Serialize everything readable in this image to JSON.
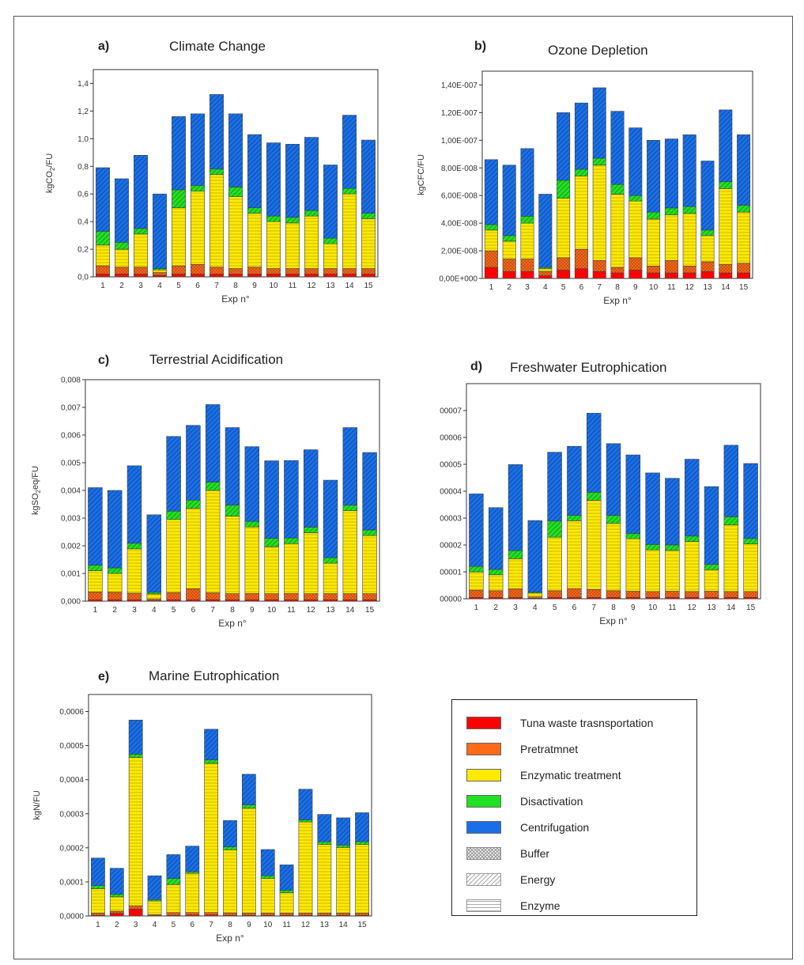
{
  "chart_data": [
    {
      "type": "bar",
      "panel": "a)",
      "title": "Climate Change",
      "ylabel": "kgCO2/FU",
      "ylabel_main": "kgCO",
      "ylabel_sub": "2",
      "ylabel_tail": "/FU",
      "xlabel": "Exp n°",
      "categories": [
        "1",
        "2",
        "3",
        "4",
        "5",
        "6",
        "7",
        "8",
        "9",
        "10",
        "11",
        "12",
        "13",
        "14",
        "15"
      ],
      "ylim": [
        0,
        1.5
      ],
      "yticks": [
        "0,0",
        "0,2",
        "0,4",
        "0,6",
        "0,8",
        "1,0",
        "1,2",
        "1,4"
      ],
      "stacked": true,
      "series": [
        {
          "name": "Tuna waste trasnsportation",
          "values": [
            0.02,
            0.02,
            0.02,
            0.01,
            0.02,
            0.02,
            0.02,
            0.02,
            0.02,
            0.02,
            0.02,
            0.02,
            0.02,
            0.02,
            0.02
          ]
        },
        {
          "name": "Pretratmnet",
          "values": [
            0.06,
            0.05,
            0.05,
            0.02,
            0.06,
            0.07,
            0.05,
            0.04,
            0.05,
            0.04,
            0.04,
            0.04,
            0.04,
            0.04,
            0.04
          ]
        },
        {
          "name": "Enzymatic treatment",
          "values": [
            0.15,
            0.13,
            0.24,
            0.02,
            0.42,
            0.53,
            0.67,
            0.52,
            0.39,
            0.34,
            0.33,
            0.38,
            0.18,
            0.54,
            0.36
          ]
        },
        {
          "name": "Disactivation",
          "values": [
            0.1,
            0.05,
            0.04,
            0.01,
            0.13,
            0.04,
            0.04,
            0.07,
            0.04,
            0.04,
            0.04,
            0.04,
            0.04,
            0.04,
            0.04
          ]
        },
        {
          "name": "Centrifugation",
          "values": [
            0.46,
            0.46,
            0.53,
            0.54,
            0.53,
            0.52,
            0.54,
            0.53,
            0.53,
            0.53,
            0.53,
            0.53,
            0.53,
            0.53,
            0.53
          ]
        }
      ]
    },
    {
      "type": "bar",
      "panel": "b)",
      "title": "Ozone Depletion",
      "ylabel": "kgCFC/FU",
      "xlabel": "Exp n°",
      "categories": [
        "1",
        "2",
        "3",
        "4",
        "5",
        "6",
        "7",
        "8",
        "9",
        "10",
        "11",
        "12",
        "13",
        "14",
        "15"
      ],
      "ylim": [
        0,
        1.5e-07
      ],
      "yticks": [
        "0,00E+000",
        "2,00E-008",
        "4,00E-008",
        "6,00E-008",
        "8,00E-008",
        "1,00E-007",
        "1,20E-007",
        "1,40E-007"
      ],
      "stacked": true,
      "series": [
        {
          "name": "Tuna waste trasnsportation",
          "values": [
            8e-09,
            5e-09,
            5e-09,
            2e-09,
            6e-09,
            7e-09,
            5e-09,
            4e-09,
            6e-09,
            4e-09,
            4e-09,
            4e-09,
            5e-09,
            4e-09,
            4e-09
          ]
        },
        {
          "name": "Pretratmnet",
          "values": [
            1.2e-08,
            9e-09,
            9e-09,
            3e-09,
            9e-09,
            1.4e-08,
            8e-09,
            4e-09,
            9e-09,
            5e-09,
            9e-09,
            5e-09,
            7e-09,
            6e-09,
            7e-09
          ]
        },
        {
          "name": "Enzymatic treatment",
          "values": [
            1.5e-08,
            1.3e-08,
            2.6e-08,
            2e-09,
            4.3e-08,
            5.3e-08,
            6.9e-08,
            5.3e-08,
            4.1e-08,
            3.4e-08,
            3.3e-08,
            3.8e-08,
            1.9e-08,
            5.5e-08,
            3.7e-08
          ]
        },
        {
          "name": "Disactivation",
          "values": [
            4e-09,
            4e-09,
            5e-09,
            1e-09,
            1.3e-08,
            5e-09,
            5e-09,
            7e-09,
            4e-09,
            5e-09,
            5e-09,
            5e-09,
            4e-09,
            5e-09,
            5e-09
          ]
        },
        {
          "name": "Centrifugation",
          "values": [
            4.7e-08,
            5.1e-08,
            4.9e-08,
            5.3e-08,
            4.9e-08,
            4.8e-08,
            5.1e-08,
            5.3e-08,
            4.9e-08,
            5.2e-08,
            5e-08,
            5.2e-08,
            5e-08,
            5.2e-08,
            5.1e-08
          ]
        }
      ]
    },
    {
      "type": "bar",
      "panel": "c)",
      "title": "Terrestrial  Acidification",
      "ylabel": "kgSO2eq/FU",
      "ylabel_main": "kgSO",
      "ylabel_sub": "2",
      "ylabel_tail": "eq/FU",
      "xlabel": "Exp n°",
      "categories": [
        "1",
        "2",
        "3",
        "4",
        "5",
        "6",
        "7",
        "8",
        "9",
        "10",
        "11",
        "12",
        "13",
        "14",
        "15"
      ],
      "ylim": [
        0,
        0.008
      ],
      "yticks": [
        "0,000",
        "0,001",
        "0,002",
        "0,003",
        "0,004",
        "0,005",
        "0,006",
        "0,007",
        "0,008"
      ],
      "stacked": true,
      "series": [
        {
          "name": "Tuna waste trasnsportation",
          "values": [
            5e-05,
            5e-05,
            5e-05,
            2e-05,
            5e-05,
            5e-05,
            5e-05,
            5e-05,
            5e-05,
            5e-05,
            5e-05,
            5e-05,
            5e-05,
            5e-05,
            5e-05
          ]
        },
        {
          "name": "Pretratmnet",
          "values": [
            0.00028,
            0.00027,
            0.00024,
            6e-05,
            0.00026,
            0.0004,
            0.00025,
            0.00022,
            0.00023,
            0.00022,
            0.00023,
            0.00022,
            0.00022,
            0.00022,
            0.00022
          ]
        },
        {
          "name": "Enzymatic treatment",
          "values": [
            0.00077,
            0.00068,
            0.0016,
            0.00018,
            0.00264,
            0.0029,
            0.0037,
            0.0028,
            0.0024,
            0.0017,
            0.0018,
            0.0022,
            0.0011,
            0.003,
            0.0021
          ]
        },
        {
          "name": "Disactivation",
          "values": [
            0.0002,
            0.0002,
            0.0002,
            6e-05,
            0.0003,
            0.0003,
            0.0003,
            0.0004,
            0.0002,
            0.0003,
            0.0002,
            0.0002,
            0.0002,
            0.0002,
            0.0002
          ]
        },
        {
          "name": "Centrifugation",
          "values": [
            0.0028,
            0.0028,
            0.0028,
            0.0028,
            0.0027,
            0.0027,
            0.0028,
            0.0028,
            0.0027,
            0.0028,
            0.0028,
            0.0028,
            0.0028,
            0.0028,
            0.0028
          ]
        }
      ]
    },
    {
      "type": "bar",
      "panel": "d)",
      "title": "Freshwater Eutrophication",
      "ylabel": "",
      "xlabel": "Exp n°",
      "categories": [
        "1",
        "2",
        "3",
        "4",
        "5",
        "6",
        "7",
        "8",
        "9",
        "10",
        "11",
        "12",
        "13",
        "14",
        "15"
      ],
      "ylim": [
        0,
        8e-05
      ],
      "yticks": [
        "00000",
        "00001",
        "00002",
        "00003",
        "00004",
        "00005",
        "00006",
        "00007"
      ],
      "stacked": true,
      "series": [
        {
          "name": "Tuna waste trasnsportation",
          "values": [
            5e-07,
            5e-07,
            5e-07,
            2e-07,
            5e-07,
            5e-07,
            5e-07,
            5e-07,
            5e-07,
            5e-07,
            5e-07,
            5e-07,
            5e-07,
            5e-07,
            5e-07
          ]
        },
        {
          "name": "Pretratmnet",
          "values": [
            2.7e-06,
            2.5e-06,
            3.2e-06,
            5e-07,
            2.5e-06,
            3.3e-06,
            2.9e-06,
            2.5e-06,
            2.3e-06,
            2.2e-06,
            2.3e-06,
            2.2e-06,
            2.3e-06,
            2.2e-06,
            2.2e-06
          ]
        },
        {
          "name": "Enzymatic treatment",
          "values": [
            6.8e-06,
            5.9e-06,
            1.12e-05,
            1.4e-06,
            1.99e-05,
            2.52e-05,
            3.32e-05,
            2.5e-05,
            1.95e-05,
            1.55e-05,
            1.52e-05,
            1.86e-05,
            8e-06,
            2.48e-05,
            1.77e-05
          ]
        },
        {
          "name": "Disactivation",
          "values": [
            2e-06,
            2e-06,
            3e-06,
            4e-07,
            6e-06,
            2e-06,
            3e-06,
            3e-06,
            2e-06,
            2e-06,
            2e-06,
            2e-06,
            2e-06,
            3e-06,
            2e-06
          ]
        },
        {
          "name": "Centrifugation",
          "values": [
            2.7e-05,
            2.3e-05,
            3.2e-05,
            2.66e-05,
            2.56e-05,
            2.57e-05,
            2.94e-05,
            2.67e-05,
            2.92e-05,
            2.66e-05,
            2.48e-05,
            2.86e-05,
            2.89e-05,
            2.66e-05,
            2.79e-05
          ]
        }
      ]
    },
    {
      "type": "bar",
      "panel": "e)",
      "title": "Marine Eutrophication",
      "ylabel": "kgN/FU",
      "xlabel": "Exp n°",
      "categories": [
        "1",
        "2",
        "3",
        "4",
        "5",
        "6",
        "7",
        "8",
        "9",
        "10",
        "11",
        "12",
        "13",
        "14",
        "15"
      ],
      "ylim": [
        0,
        0.00065
      ],
      "yticks": [
        "0,0000",
        "0,0001",
        "0,0002",
        "0,0003",
        "0,0004",
        "0,0005",
        "0,0006"
      ],
      "stacked": true,
      "series": [
        {
          "name": "Tuna waste trasnsportation",
          "values": [
            2e-06,
            8e-06,
            2e-05,
            1e-06,
            2e-06,
            3e-06,
            3e-06,
            2e-06,
            2e-06,
            2e-06,
            2e-06,
            2e-06,
            2e-06,
            2e-06,
            2e-06
          ]
        },
        {
          "name": "Pretratmnet",
          "values": [
            6e-06,
            6e-06,
            1e-05,
            3e-06,
            8e-06,
            7e-06,
            7e-06,
            7e-06,
            6e-06,
            6e-06,
            6e-06,
            6e-06,
            6e-06,
            6e-06,
            6e-06
          ]
        },
        {
          "name": "Enzymatic treatment",
          "values": [
            7.2e-05,
            4.2e-05,
            0.000435,
            4e-05,
            8.2e-05,
            0.000115,
            0.000438,
            0.000185,
            0.000308,
            0.000102,
            6e-05,
            0.000268,
            0.000202,
            0.000193,
            0.000202
          ]
        },
        {
          "name": "Disactivation",
          "values": [
            9e-06,
            8e-06,
            1e-05,
            4e-06,
            1.8e-05,
            5e-06,
            1e-05,
            9e-06,
            1e-05,
            8e-06,
            7e-06,
            6e-06,
            8e-06,
            7e-06,
            8e-06
          ]
        },
        {
          "name": "Centrifugation",
          "values": [
            8.1e-05,
            7.6e-05,
            0.0001,
            7e-05,
            7e-05,
            7.5e-05,
            9e-05,
            7.7e-05,
            9e-05,
            7.7e-05,
            7.5e-05,
            9e-05,
            8e-05,
            8e-05,
            8.5e-05
          ]
        }
      ]
    }
  ],
  "legend": {
    "items": [
      {
        "label": "Tuna waste trasnsportation",
        "color": "#ff0000",
        "kind": "solid"
      },
      {
        "label": "Pretratmnet",
        "color": "#ff6a1a",
        "kind": "solid"
      },
      {
        "label": "Enzymatic treatment",
        "color": "#ffea00",
        "kind": "solid"
      },
      {
        "label": "Disactivation",
        "color": "#22e022",
        "kind": "solid"
      },
      {
        "label": "Centrifugation",
        "color": "#1a6fe8",
        "kind": "solid"
      },
      {
        "label": "Buffer",
        "color": "#888888",
        "kind": "cross"
      },
      {
        "label": "Energy",
        "color": "#888888",
        "kind": "diag"
      },
      {
        "label": "Enzyme",
        "color": "#888888",
        "kind": "horiz"
      }
    ]
  },
  "colors": {
    "Tuna waste trasnsportation": "#ff0000",
    "Pretratmnet": "#ff6a1a",
    "Enzymatic treatment": "#ffea00",
    "Disactivation": "#22e022",
    "Centrifugation": "#1a6fe8"
  }
}
